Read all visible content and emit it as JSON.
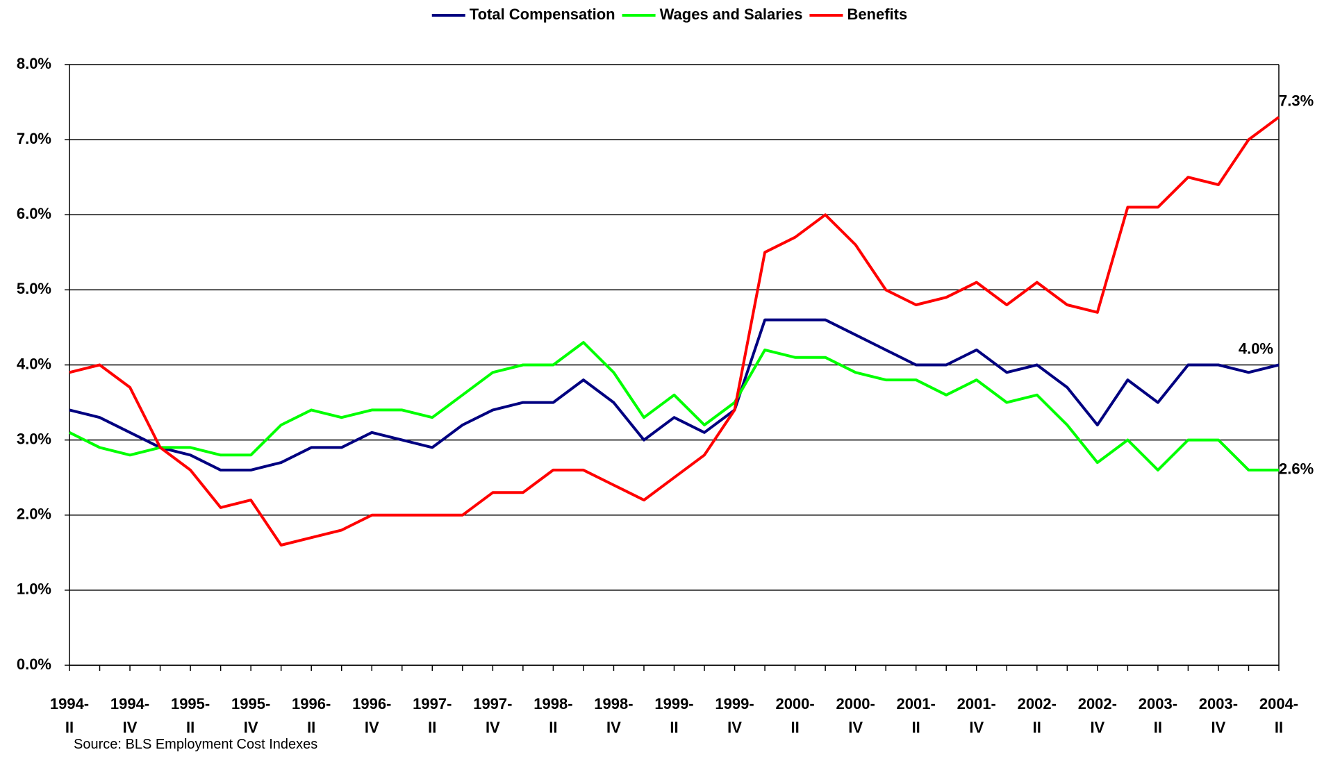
{
  "chart_data": {
    "type": "line",
    "categories": [
      "1994-\nII",
      null,
      "1994-\nIV",
      null,
      "1995-\nII",
      null,
      "1995-\nIV",
      null,
      "1996-\nII",
      null,
      "1996-\nIV",
      null,
      "1997-\nII",
      null,
      "1997-\nIV",
      null,
      "1998-\nII",
      null,
      "1998-\nIV",
      null,
      "1999-\nII",
      null,
      "1999-\nIV",
      null,
      "2000-\nII",
      null,
      "2000-\nIV",
      null,
      "2001-\nII",
      null,
      "2001-\nIV",
      null,
      "2002-\nII",
      null,
      "2002-\nIV",
      null,
      "2003-\nII",
      null,
      "2003-\nIV",
      null,
      "2004-\nII"
    ],
    "series": [
      {
        "name": "Total Compensation",
        "color": "#000080",
        "values": [
          3.4,
          3.3,
          3.1,
          2.9,
          2.8,
          2.6,
          2.6,
          2.7,
          2.9,
          2.9,
          3.1,
          3.0,
          2.9,
          3.2,
          3.4,
          3.5,
          3.5,
          3.8,
          3.5,
          3.0,
          3.3,
          3.1,
          3.4,
          4.6,
          4.6,
          4.6,
          4.4,
          4.2,
          4.0,
          4.0,
          4.2,
          3.9,
          4.0,
          3.7,
          3.2,
          3.8,
          3.5,
          4.0,
          4.0,
          3.9,
          4.0
        ],
        "value_labels": [
          null,
          null,
          null,
          null,
          null,
          null,
          null,
          null,
          null,
          null,
          null,
          null,
          null,
          null,
          null,
          null,
          null,
          null,
          null,
          null,
          null,
          null,
          null,
          null,
          null,
          null,
          null,
          null,
          null,
          null,
          null,
          null,
          null,
          null,
          null,
          null,
          null,
          null,
          null,
          null,
          "4.0%"
        ]
      },
      {
        "name": "Wages and Salaries",
        "color": "#00ff00",
        "values": [
          3.1,
          2.9,
          2.8,
          2.9,
          2.9,
          2.8,
          2.8,
          3.2,
          3.4,
          3.3,
          3.4,
          3.4,
          3.3,
          3.6,
          3.9,
          4.0,
          4.0,
          4.3,
          3.9,
          3.3,
          3.6,
          3.2,
          3.5,
          4.2,
          4.1,
          4.1,
          3.9,
          3.8,
          3.8,
          3.6,
          3.8,
          3.5,
          3.6,
          3.2,
          2.7,
          3.0,
          2.6,
          3.0,
          3.0,
          2.6,
          2.6
        ],
        "value_labels": [
          null,
          null,
          null,
          null,
          null,
          null,
          null,
          null,
          null,
          null,
          null,
          null,
          null,
          null,
          null,
          null,
          null,
          null,
          null,
          null,
          null,
          null,
          null,
          null,
          null,
          null,
          null,
          null,
          null,
          null,
          null,
          null,
          null,
          null,
          null,
          null,
          null,
          null,
          null,
          null,
          "2.6%"
        ]
      },
      {
        "name": "Benefits",
        "color": "#ff0000",
        "values": [
          3.9,
          4.0,
          3.7,
          2.9,
          2.6,
          2.1,
          2.2,
          1.6,
          1.7,
          1.8,
          2.0,
          2.0,
          2.0,
          2.0,
          2.3,
          2.3,
          2.6,
          2.6,
          2.4,
          2.2,
          2.5,
          2.8,
          3.4,
          5.5,
          5.7,
          6.0,
          5.6,
          5.0,
          4.8,
          4.9,
          5.1,
          4.8,
          5.1,
          4.8,
          4.7,
          6.1,
          6.1,
          6.5,
          6.4,
          7.0,
          7.3
        ],
        "value_labels": [
          null,
          null,
          null,
          null,
          null,
          null,
          null,
          null,
          null,
          null,
          null,
          null,
          null,
          null,
          null,
          null,
          null,
          null,
          null,
          null,
          null,
          null,
          null,
          null,
          null,
          null,
          null,
          null,
          null,
          null,
          null,
          null,
          null,
          null,
          null,
          null,
          null,
          null,
          null,
          null,
          "7.3%"
        ]
      }
    ],
    "ylim": [
      0,
      8
    ],
    "yticks": [
      {
        "value": 0,
        "label": "0.0%"
      },
      {
        "value": 1,
        "label": "1.0%"
      },
      {
        "value": 2,
        "label": "2.0%"
      },
      {
        "value": 3,
        "label": "3.0%"
      },
      {
        "value": 4,
        "label": "4.0%"
      },
      {
        "value": 5,
        "label": "5.0%"
      },
      {
        "value": 6,
        "label": "6.0%"
      },
      {
        "value": 7,
        "label": "7.0%"
      },
      {
        "value": 8,
        "label": "8.0%"
      }
    ],
    "grid": true,
    "legend": "top",
    "source": "Source: BLS Employment Cost Indexes"
  }
}
